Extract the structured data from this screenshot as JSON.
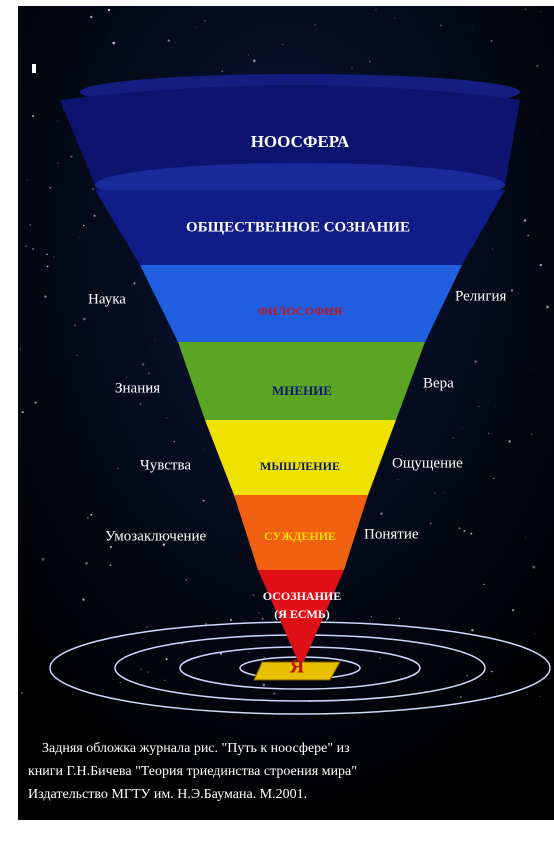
{
  "layers": [
    "НООСФЕРА",
    "ОБЩЕСТВЕННОЕ СОЗНАНИЕ",
    "ФИЛОСОФИЯ",
    "МНЕНИЕ",
    "МЫШЛЕНИЕ",
    "СУЖДЕНИЕ",
    "ОСОЗНАНИЕ",
    "(Я ЕСМЬ)"
  ],
  "left_labels": [
    "Наука",
    "Знания",
    "Чувства",
    "Умозаключение"
  ],
  "right_labels": [
    "Религия",
    "Вера",
    "Ощущение",
    "Понятие"
  ],
  "center": "Я",
  "caption": [
    "Задняя обложка журнала  рис. \"Путь к ноосфере\"  из",
    "книги Г.Н.Бичева \"Теория триединства строения мира\"",
    "Издательство МГТУ им. Н.Э.Баумана.  М.2001."
  ]
}
